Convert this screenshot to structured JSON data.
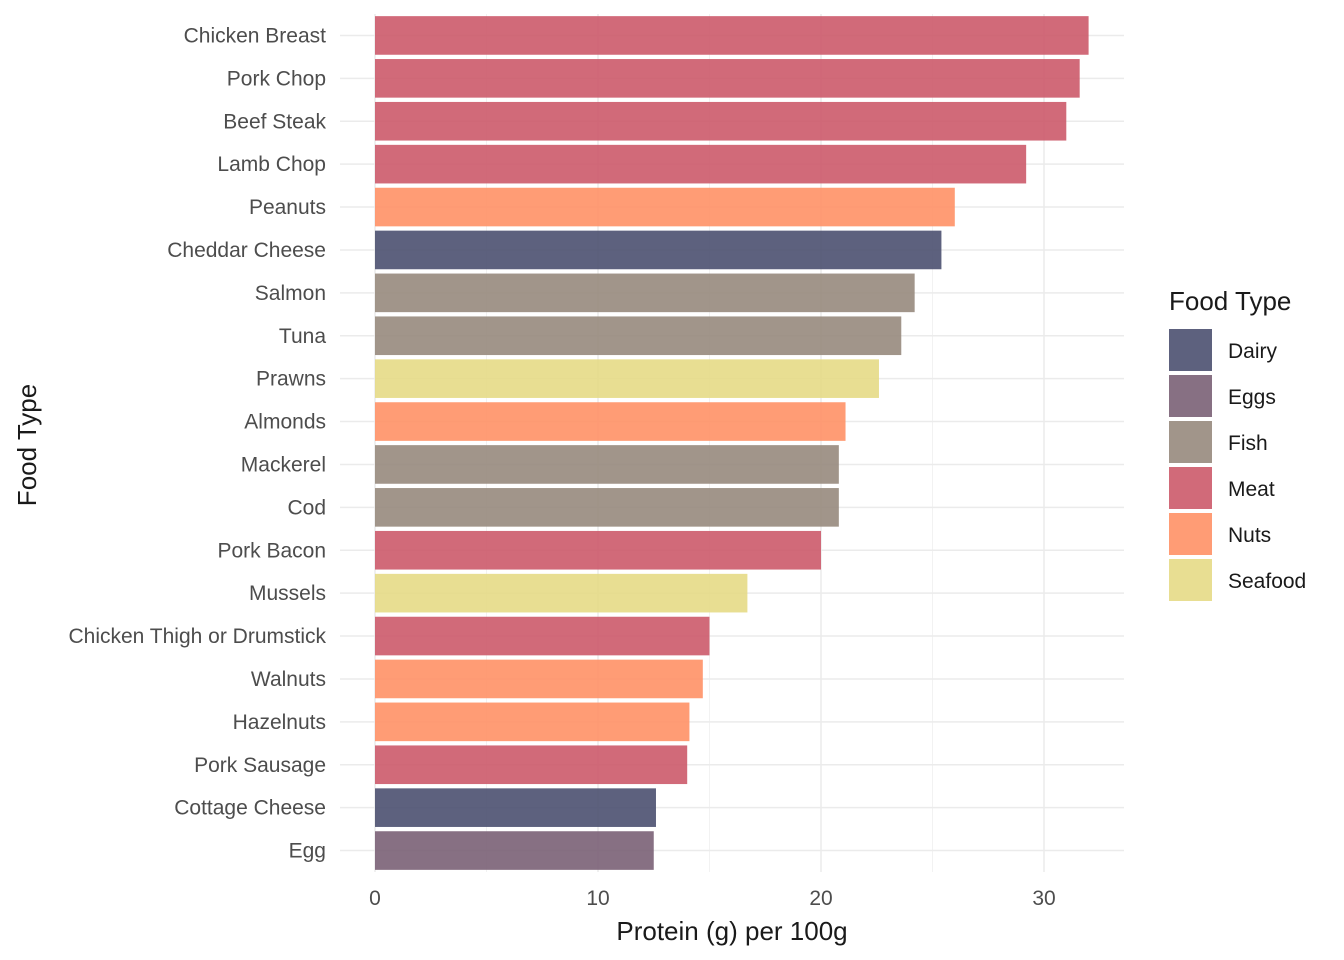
{
  "chart_data": {
    "type": "bar",
    "orientation": "horizontal",
    "xlabel": "Protein (g) per 100g",
    "ylabel": "Food Type",
    "xlim": [
      0,
      33.6
    ],
    "x_ticks": [
      0,
      10,
      20,
      30
    ],
    "grid": true,
    "legend": {
      "title": "Food Type",
      "position": "right",
      "entries": [
        {
          "name": "Dairy",
          "color": "#4b5070"
        },
        {
          "name": "Eggs",
          "color": "#7a6075"
        },
        {
          "name": "Fish",
          "color": "#978a7d"
        },
        {
          "name": "Meat",
          "color": "#cc5a6a"
        },
        {
          "name": "Nuts",
          "color": "#ff9166"
        },
        {
          "name": "Seafood",
          "color": "#e6da86"
        }
      ]
    },
    "categories": [
      "Chicken Breast",
      "Pork Chop",
      "Beef Steak",
      "Lamb Chop",
      "Peanuts",
      "Cheddar Cheese",
      "Salmon",
      "Tuna",
      "Prawns",
      "Almonds",
      "Mackerel",
      "Cod",
      "Pork Bacon",
      "Mussels",
      "Chicken Thigh or Drumstick",
      "Walnuts",
      "Hazelnuts",
      "Pork Sausage",
      "Cottage Cheese",
      "Egg"
    ],
    "values": [
      32.0,
      31.6,
      31.0,
      29.2,
      26.0,
      25.4,
      24.2,
      23.6,
      22.6,
      21.1,
      20.8,
      20.8,
      20.0,
      16.7,
      15.0,
      14.7,
      14.1,
      14.0,
      12.6,
      12.5
    ],
    "groups": [
      "Meat",
      "Meat",
      "Meat",
      "Meat",
      "Nuts",
      "Dairy",
      "Fish",
      "Fish",
      "Seafood",
      "Nuts",
      "Fish",
      "Fish",
      "Meat",
      "Seafood",
      "Meat",
      "Nuts",
      "Nuts",
      "Meat",
      "Dairy",
      "Eggs"
    ]
  }
}
